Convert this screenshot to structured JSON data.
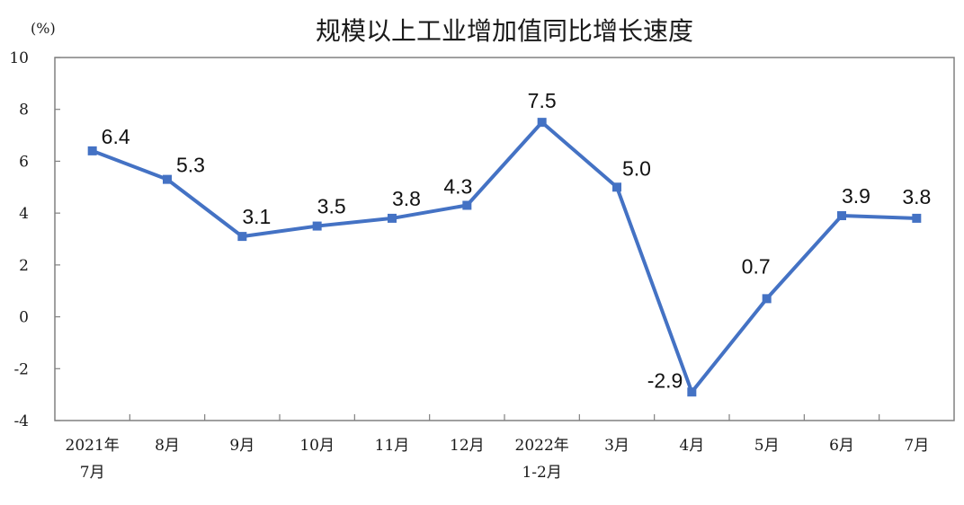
{
  "chart_data": {
    "type": "line",
    "title": "规模以上工业增加值同比增长速度",
    "ylabel": "(%)",
    "xlabel": "",
    "ylim": [
      -4,
      10
    ],
    "yticks": [
      10,
      8,
      6,
      4,
      2,
      0,
      -2,
      -4
    ],
    "categories": [
      [
        "2021年",
        "7月"
      ],
      [
        "8月"
      ],
      [
        "9月"
      ],
      [
        "10月"
      ],
      [
        "11月"
      ],
      [
        "12月"
      ],
      [
        "2022年",
        "1-2月"
      ],
      [
        "3月"
      ],
      [
        "4月"
      ],
      [
        "5月"
      ],
      [
        "6月"
      ],
      [
        "7月"
      ]
    ],
    "series": [
      {
        "values": [
          6.4,
          5.3,
          3.1,
          3.5,
          3.8,
          4.3,
          7.5,
          5.0,
          -2.9,
          0.7,
          3.9,
          3.8
        ],
        "labels": [
          "6.4",
          "5.3",
          "3.1",
          "3.5",
          "3.8",
          "4.3",
          "7.5",
          "5.0",
          "-2.9",
          "0.7",
          "3.9",
          "3.8"
        ],
        "color": "#4472c4",
        "marker": "square"
      }
    ],
    "grid": false,
    "legend": "none"
  }
}
